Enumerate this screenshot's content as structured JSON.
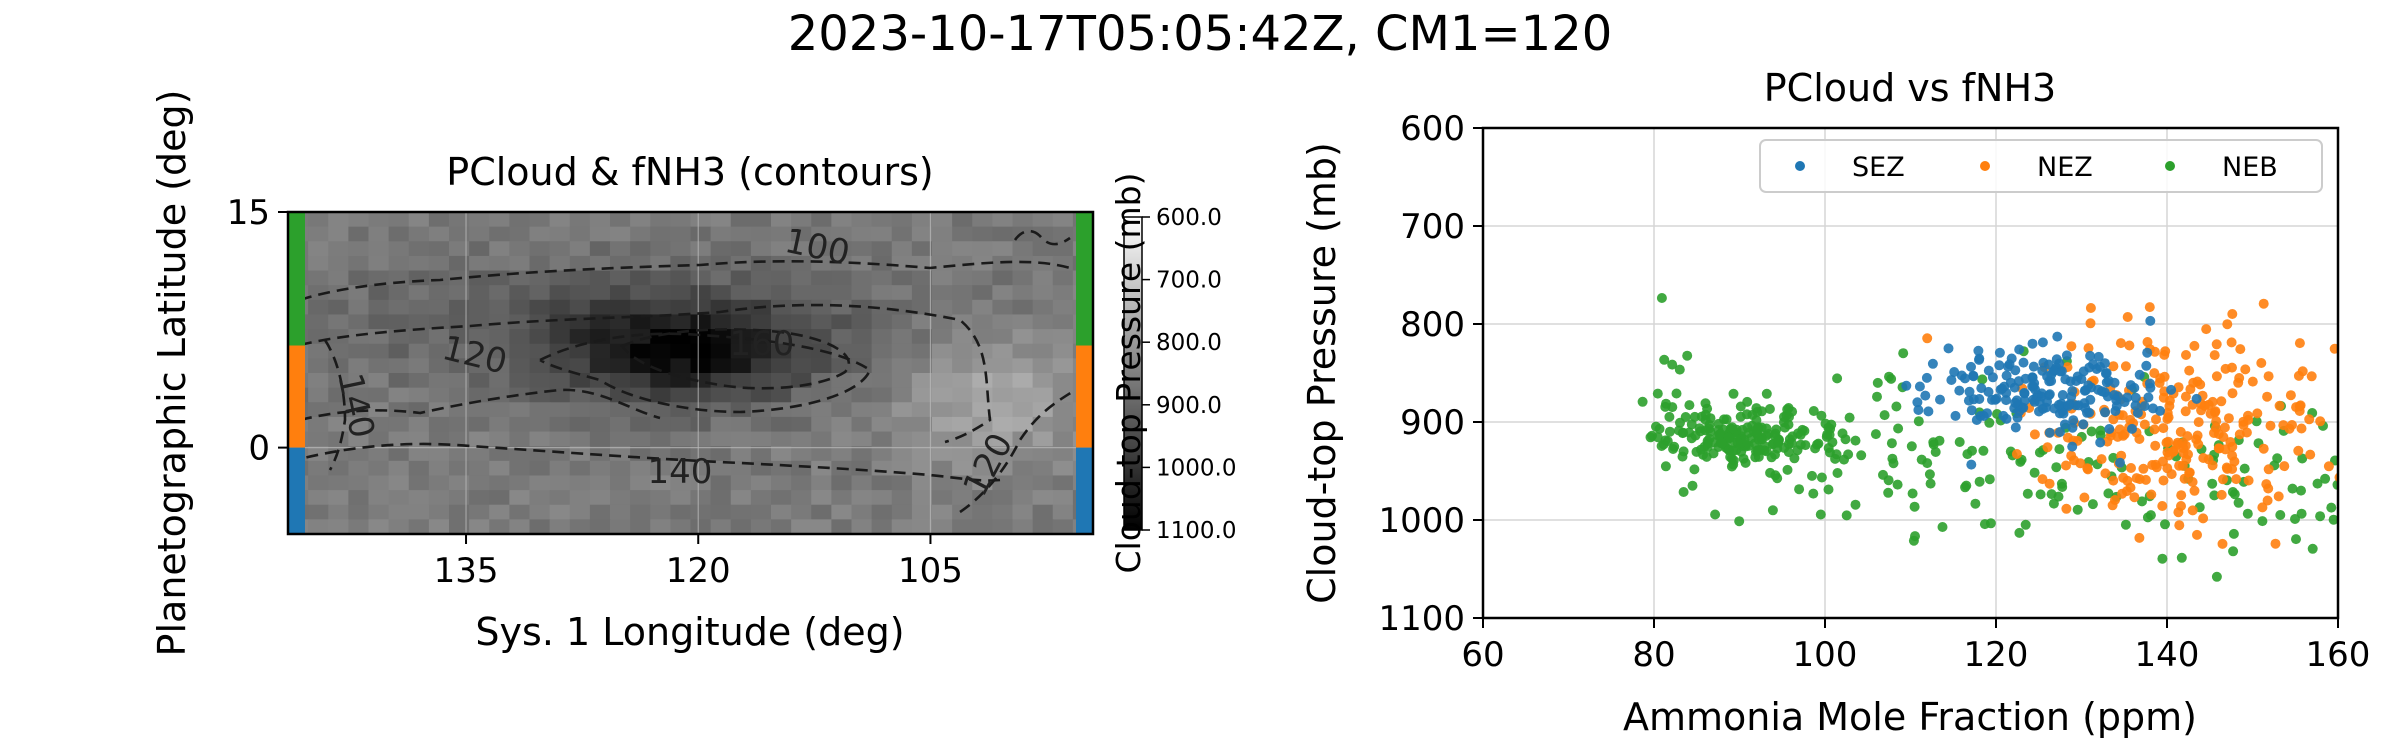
{
  "figure": {
    "title": "2023-10-17T05:05:42Z, CM1=120"
  },
  "chart_data": [
    {
      "type": "heatmap",
      "title": "PCloud & fNH3 (contours)",
      "xlabel": "Sys. 1 Longitude (deg)",
      "ylabel": "Planetographic Latitude (deg)",
      "xlim": [
        146.5,
        94.5
      ],
      "ylim": [
        -5.5,
        15
      ],
      "xticks": [
        "135",
        "120",
        "105"
      ],
      "xtick_values": [
        135,
        120,
        105
      ],
      "yticks": [
        "15",
        "0"
      ],
      "ytick_values": [
        15,
        0
      ],
      "grid": true,
      "colormap": "gray",
      "colorbar": {
        "label": "Cloud-top Pressure (mb)",
        "ticks": [
          "600.0",
          "700.0",
          "800.0",
          "900.0",
          "1000.0",
          "1100.0"
        ],
        "tick_values": [
          600,
          700,
          800,
          900,
          1000,
          1100
        ],
        "range": [
          600,
          1100
        ]
      },
      "contour_labels": [
        "100",
        "120",
        "160",
        "140",
        "140",
        "120"
      ],
      "zone_bands": [
        {
          "name": "NEB",
          "lat_range": [
            6.5,
            15
          ],
          "color": "#2ca02c"
        },
        {
          "name": "NEZ",
          "lat_range": [
            0,
            6.5
          ],
          "color": "#ff7f0e"
        },
        {
          "name": "SEZ",
          "lat_range": [
            -5.5,
            0
          ],
          "color": "#1f77b4"
        }
      ]
    },
    {
      "type": "scatter",
      "title": "PCloud vs fNH3",
      "xlabel": "Ammonia Mole Fraction (ppm)",
      "ylabel": "Cloud-top Pressure (mb)",
      "xlim": [
        60,
        160
      ],
      "ylim": [
        1100,
        600
      ],
      "xticks": [
        "60",
        "80",
        "100",
        "120",
        "140",
        "160"
      ],
      "xtick_values": [
        60,
        80,
        100,
        120,
        140,
        160
      ],
      "yticks": [
        "600",
        "700",
        "800",
        "900",
        "1000",
        "1100"
      ],
      "ytick_values": [
        600,
        700,
        800,
        900,
        1000,
        1100
      ],
      "grid": true,
      "legend": "top-right",
      "series": [
        {
          "name": "SEZ",
          "color": "#1f77b4",
          "cluster": {
            "x_mean": 126,
            "x_sd": 7,
            "y_mean": 870,
            "y_sd": 22,
            "count": 190
          }
        },
        {
          "name": "NEZ",
          "color": "#ff7f0e",
          "cluster": {
            "x_mean": 141,
            "x_sd": 9,
            "y_mean": 905,
            "y_sd": 50,
            "count": 260
          }
        },
        {
          "name": "NEB",
          "color": "#2ca02c",
          "cluster": {
            "x_mean": 100,
            "x_sd": 16,
            "y_mean": 925,
            "y_sd": 40,
            "count": 380
          }
        }
      ]
    }
  ]
}
